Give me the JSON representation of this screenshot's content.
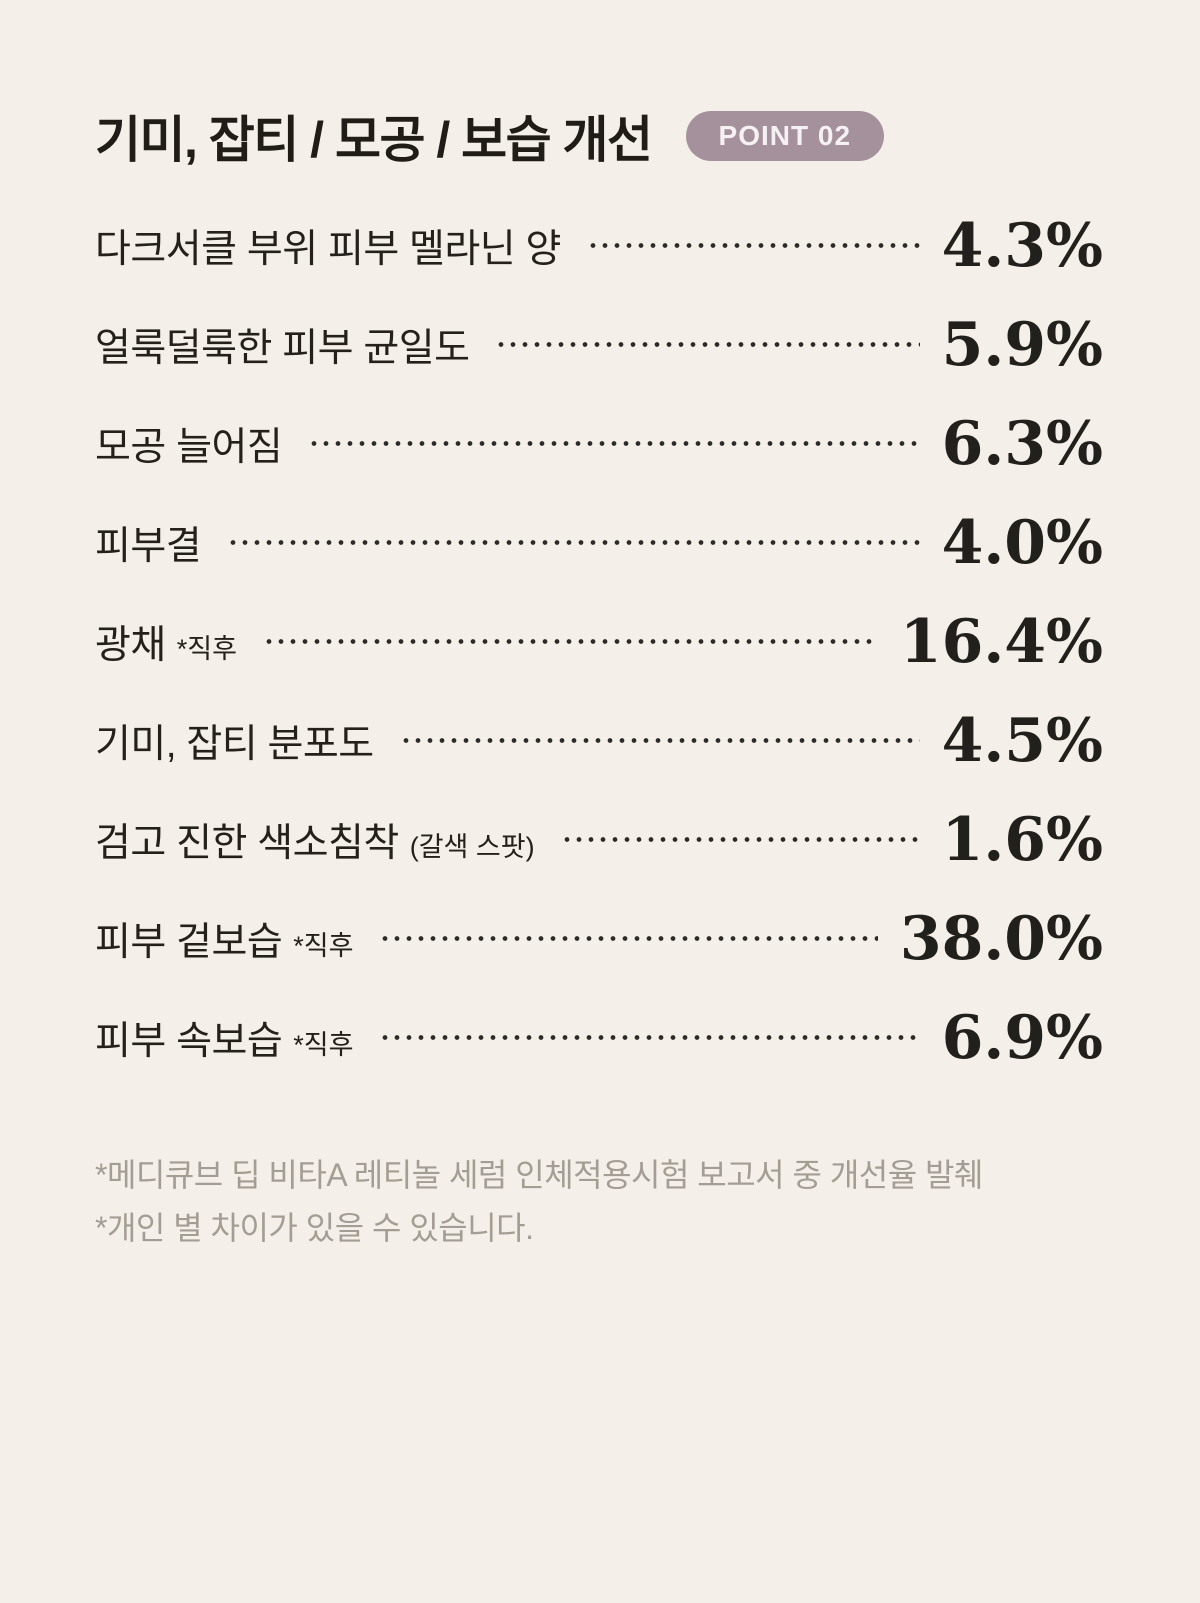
{
  "colors": {
    "background": "#f4f0e9",
    "text": "#24211c",
    "muted": "#a49d93",
    "badge_background": "#a5919b",
    "badge_text": "#f5f1f2",
    "leader_dot": "#2b2a26"
  },
  "header": {
    "title": "기미, 잡티 / 모공 / 보습 개선",
    "badge_label": "POINT 02"
  },
  "chart_data": {
    "type": "table",
    "title": "기미, 잡티 / 모공 / 보습 개선",
    "badge": "POINT 02",
    "value_unit": "%",
    "rows": [
      {
        "label": "다크서클 부위 피부 멜라닌 양",
        "suffix": "",
        "value": "4.3%",
        "value_num": 4.3
      },
      {
        "label": "얼룩덜룩한 피부 균일도",
        "suffix": "",
        "value": "5.9%",
        "value_num": 5.9
      },
      {
        "label": "모공 늘어짐",
        "suffix": "",
        "value": "6.3%",
        "value_num": 6.3
      },
      {
        "label": "피부결",
        "suffix": "",
        "value": "4.0%",
        "value_num": 4.0
      },
      {
        "label": "광채",
        "suffix": "*직후",
        "value": "16.4%",
        "value_num": 16.4
      },
      {
        "label": "기미, 잡티 분포도",
        "suffix": "",
        "value": "4.5%",
        "value_num": 4.5
      },
      {
        "label": "검고 진한 색소침착",
        "suffix": "(갈색 스팟)",
        "value": "1.6%",
        "value_num": 1.6
      },
      {
        "label": "피부 겉보습",
        "suffix": "*직후",
        "value": "38.0%",
        "value_num": 38.0
      },
      {
        "label": "피부 속보습",
        "suffix": "*직후",
        "value": "6.9%",
        "value_num": 6.9
      }
    ]
  },
  "footnotes": [
    "*메디큐브 딥 비타A 레티놀 세럼 인체적용시험 보고서 중 개선율 발췌",
    "*개인 별 차이가 있을 수 있습니다."
  ]
}
